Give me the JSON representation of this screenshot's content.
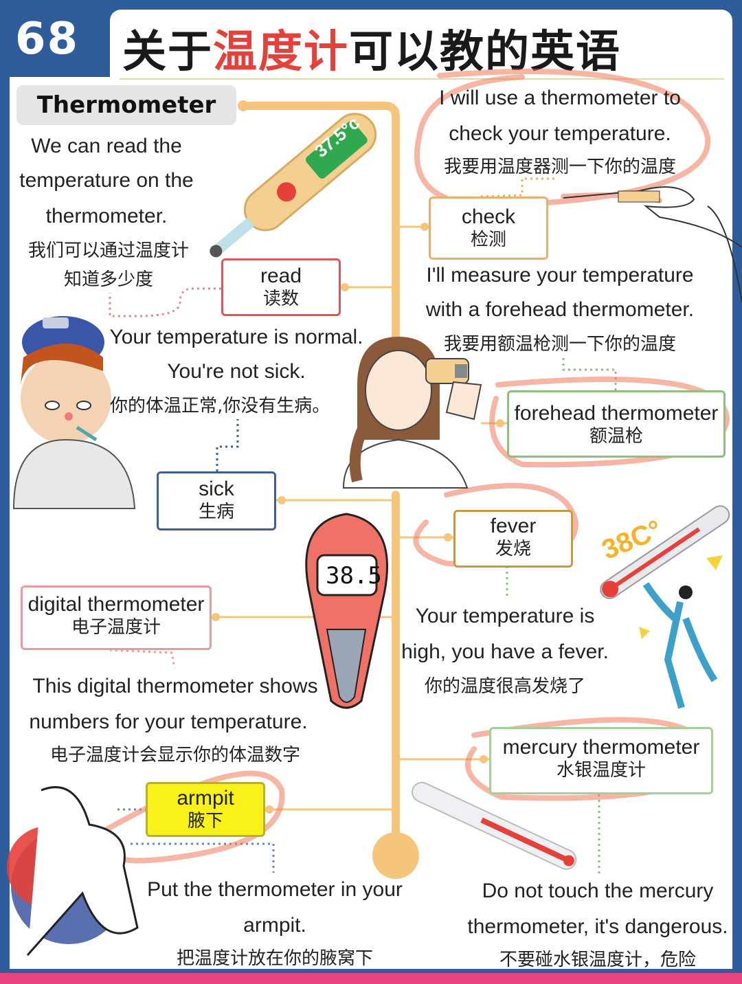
{
  "header": {
    "number": "68",
    "title_part1": "关于",
    "title_part2": "温度计",
    "title_part3": "可以教的英语"
  },
  "section_label": "Thermometer",
  "intro": {
    "en_lines": [
      "We can read the",
      "temperature on the",
      "thermometer."
    ],
    "cn_lines": [
      "我们可以通过温度计",
      "知道多少度"
    ]
  },
  "thermometer_reading": "37.5°c",
  "digital_reading": "38.5",
  "fever_reading": "38C°",
  "vocab": {
    "read": {
      "en": "read",
      "cn": "读数"
    },
    "sick": {
      "en": "sick",
      "cn": "生病"
    },
    "check": {
      "en": "check",
      "cn": "检测"
    },
    "forehead": {
      "en": "forehead thermometer",
      "cn": "额温枪"
    },
    "fever": {
      "en": "fever",
      "cn": "发烧"
    },
    "digital": {
      "en": "digital thermometer",
      "cn": "电子温度计"
    },
    "mercury": {
      "en": "mercury thermometer",
      "cn": "水银温度计"
    },
    "armpit": {
      "en": "armpit",
      "cn": "腋下"
    }
  },
  "sentences": {
    "normal": {
      "en_lines": [
        "Your temperature is normal.",
        "You're not sick."
      ],
      "cn": "你的体温正常,你没有生病。"
    },
    "check": {
      "en_lines": [
        "I will use a thermometer to",
        "check your temperature."
      ],
      "cn": "我要用温度器测一下你的温度"
    },
    "forehead": {
      "en_lines": [
        "I'll measure your temperature",
        "with a forehead thermometer."
      ],
      "cn": "我要用额温枪测一下你的温度"
    },
    "fever": {
      "en_lines": [
        "Your temperature is",
        "high, you have a fever."
      ],
      "cn": "你的温度很高发烧了"
    },
    "digital": {
      "en_lines": [
        "This digital thermometer shows",
        "numbers for your temperature."
      ],
      "cn": "电子温度计会显示你的体温数字"
    },
    "armpit": {
      "en_lines": [
        "Put the thermometer in your",
        "armpit."
      ],
      "cn": "把温度计放在你的腋窝下"
    },
    "mercury": {
      "en_lines": [
        "Do not touch the mercury",
        "thermometer, it's dangerous."
      ],
      "cn": "不要碰水银温度计，危险"
    }
  },
  "colors": {
    "background": "#2f5c9a",
    "accent_red": "#e5403a",
    "trunk": "#f6c57c",
    "read_border": "#d9565c",
    "sick_border": "#3b5f99",
    "check_border": "#e9b06a",
    "forehead_border": "#8fbf7e",
    "fever_border": "#c79a3e",
    "digital_border": "#e79aa0",
    "mercury_border": "#a6cf95",
    "armpit_fill": "#f8f21a"
  }
}
